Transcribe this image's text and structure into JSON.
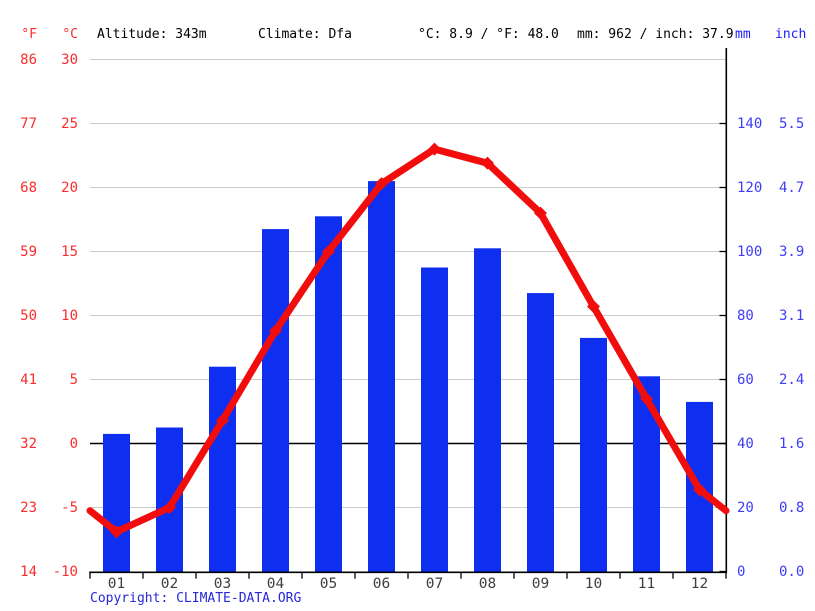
{
  "header": {
    "f_label": "°F",
    "c_label": "°C",
    "altitude": "Altitude: 343m",
    "climate": "Climate: Dfa",
    "temp_summary": "°C: 8.9 / °F: 48.0",
    "precip_summary": "mm: 962 / inch: 37.9",
    "mm_label": "mm",
    "inch_label": "inch"
  },
  "footer": {
    "copyright_prefix": "Copyright: ",
    "copyright_link": "CLIMATE-DATA.ORG"
  },
  "colors": {
    "bar": "#0f2ff0",
    "line": "#f20d0d",
    "temp_label": "#fb2d2d",
    "precip_label": "#3d3dfa",
    "precip_header": "#1a1aff",
    "grid": "#cccccc",
    "axis": "#000000",
    "month_label": "#3f3f3f",
    "copyright": "#2828d8"
  },
  "chart_data": {
    "type": "combo-bar-line-climograph",
    "title": "",
    "categories": [
      "01",
      "02",
      "03",
      "04",
      "05",
      "06",
      "07",
      "08",
      "09",
      "10",
      "11",
      "12"
    ],
    "series": [
      {
        "name": "precipitation_mm",
        "type": "bar",
        "values": [
          43,
          45,
          64,
          107,
          111,
          122,
          95,
          101,
          87,
          73,
          61,
          53
        ]
      },
      {
        "name": "temperature_c",
        "type": "line",
        "values": [
          -6.9,
          -5.0,
          1.8,
          8.8,
          15.0,
          20.3,
          23.0,
          21.9,
          18.0,
          10.7,
          3.5,
          -3.6
        ]
      }
    ],
    "left_axis": {
      "f_ticks": [
        "86",
        "77",
        "68",
        "59",
        "50",
        "41",
        "32",
        "23",
        "14"
      ],
      "c_ticks": [
        30,
        25,
        20,
        15,
        10,
        5,
        0,
        -5,
        -10
      ],
      "c_range": [
        -10,
        30
      ]
    },
    "right_axis": {
      "mm_ticks": [
        140,
        120,
        100,
        80,
        60,
        40,
        20,
        0
      ],
      "inch_ticks": [
        "5.5",
        "4.7",
        "3.9",
        "3.1",
        "2.4",
        "1.6",
        "0.8",
        "0.0"
      ],
      "mm_range": [
        0,
        160
      ]
    },
    "grid": true,
    "legend": "none",
    "annual_mean_c": 8.9,
    "annual_mean_f": 48.0,
    "annual_precip_mm": 962,
    "annual_precip_inch": 37.9
  }
}
